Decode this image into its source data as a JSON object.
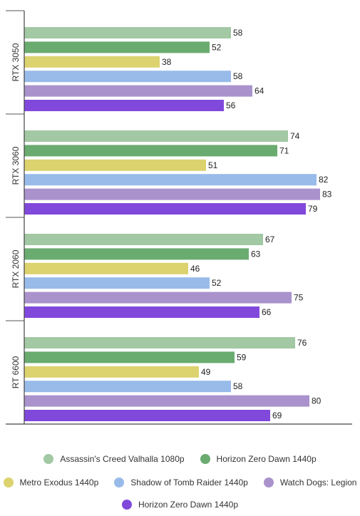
{
  "chart_data": {
    "type": "bar",
    "orientation": "horizontal",
    "categories": [
      "RTX 3050",
      "RTX 3060",
      "RTX 2060",
      "RT 6600"
    ],
    "series": [
      {
        "name": "Assassin's Creed Valhalla 1080p",
        "color": "#a2c8a4",
        "values": [
          58,
          74,
          67,
          76
        ]
      },
      {
        "name": "Horizon Zero Dawn 1440p",
        "color": "#6aab70",
        "values": [
          52,
          71,
          63,
          59
        ]
      },
      {
        "name": "Metro Exodus 1440p",
        "color": "#dcd26e",
        "values": [
          38,
          51,
          46,
          49
        ]
      },
      {
        "name": "Shadow of Tomb Raider 1440p",
        "color": "#98bbe9",
        "values": [
          58,
          82,
          52,
          58
        ]
      },
      {
        "name": "Watch Dogs: Legion",
        "color": "#aa92cd",
        "values": [
          64,
          83,
          75,
          80
        ]
      },
      {
        "name": "Horizon Zero Dawn 1440p",
        "color": "#8148dc",
        "values": [
          56,
          79,
          66,
          69
        ]
      }
    ],
    "xlim": [
      0,
      90
    ],
    "xticks": [
      0,
      10,
      20,
      30,
      40,
      50,
      60,
      70,
      80,
      90
    ],
    "grid": false,
    "data_labels": true,
    "legend_position": "bottom"
  }
}
